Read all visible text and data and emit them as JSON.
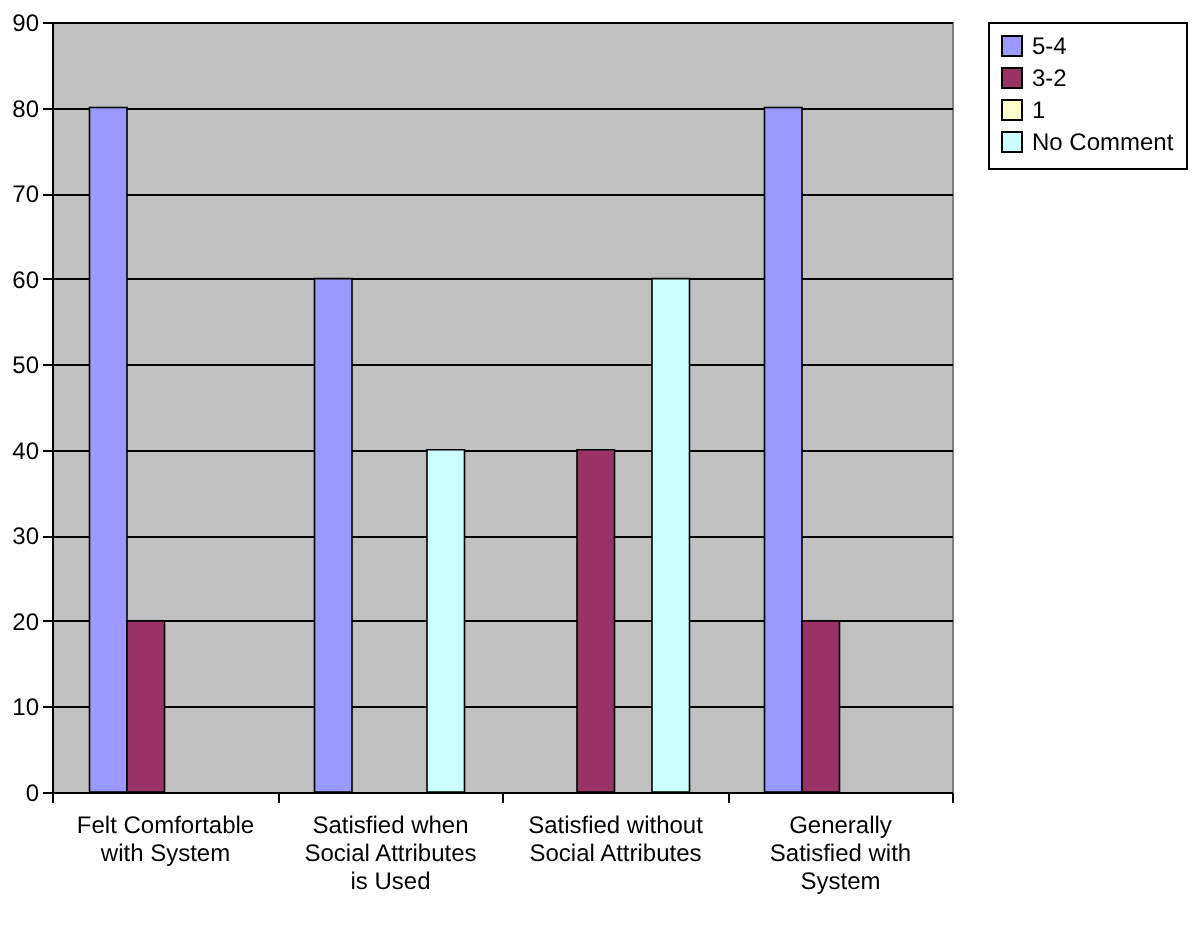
{
  "chart_data": {
    "type": "bar",
    "categories": [
      "Felt Comfortable with System",
      "Satisfied when Social Attributes is Used",
      "Satisfied without Social Attributes",
      "Generally Satisfied with System"
    ],
    "series": [
      {
        "name": "5-4",
        "color": "#9999ff",
        "values": [
          80,
          60,
          null,
          80
        ]
      },
      {
        "name": "3-2",
        "color": "#993366",
        "values": [
          20,
          null,
          40,
          20
        ]
      },
      {
        "name": "1",
        "color": "#ffffcc",
        "values": [
          null,
          null,
          null,
          null
        ]
      },
      {
        "name": "No Comment",
        "color": "#ccffff",
        "values": [
          null,
          40,
          60,
          null
        ]
      }
    ],
    "ylim": [
      0,
      90
    ],
    "yticks": [
      0,
      10,
      20,
      30,
      40,
      50,
      60,
      70,
      80,
      90
    ],
    "grid": "y",
    "legend": "right"
  }
}
